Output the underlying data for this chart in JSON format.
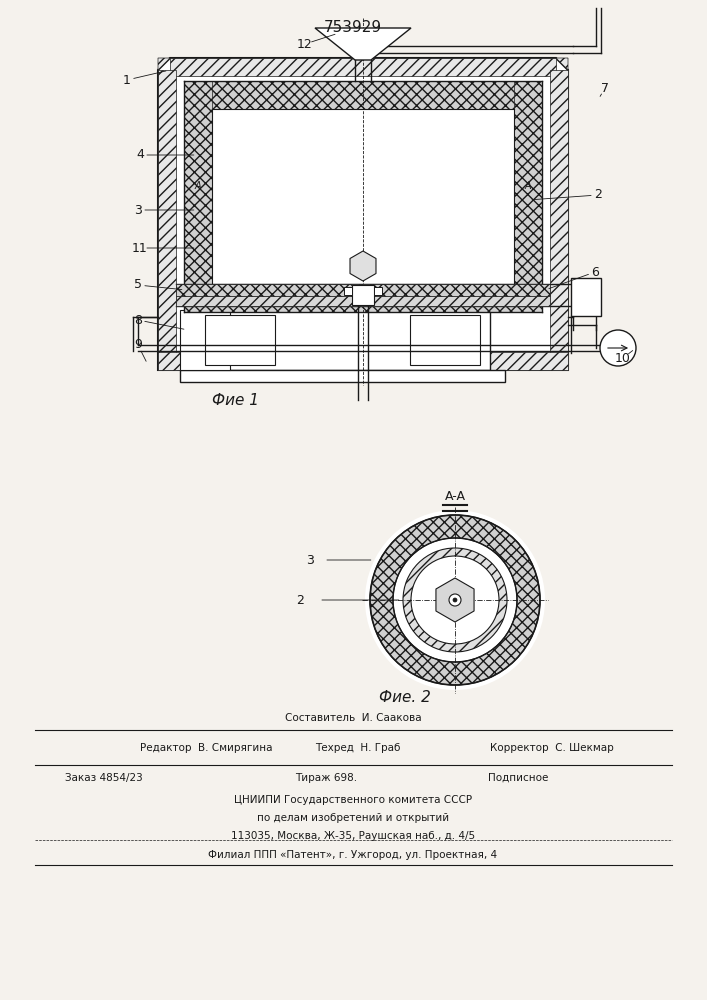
{
  "patent_number": "753929",
  "bg_color": "#f5f2ed",
  "line_color": "#1a1a1a",
  "fig1_caption": "Фие 1",
  "fig2_caption": "Фие. 2",
  "footer_составитель": "Составитель  И. Саакова",
  "footer_редактор": "Редактор  В. Смирягина",
  "footer_техред": "Техред  Н. Граб",
  "footer_корректор": "Корректор  С. Шекмар",
  "footer_заказ": "Заказ 4854/23",
  "footer_тираж": "Тираж 698.",
  "footer_подписное": "Подписное",
  "footer_цниипи": "ЦНИИПИ Государственного комитета СССР",
  "footer_поделам": "по делам изобретений и открытий",
  "footer_адрес": "113035, Москва, Ж-35, Раушская наб., д. 4/5",
  "footer_филиал": "Филиал ППП «Патент», г. Ужгород, ул. Проектная, 4"
}
